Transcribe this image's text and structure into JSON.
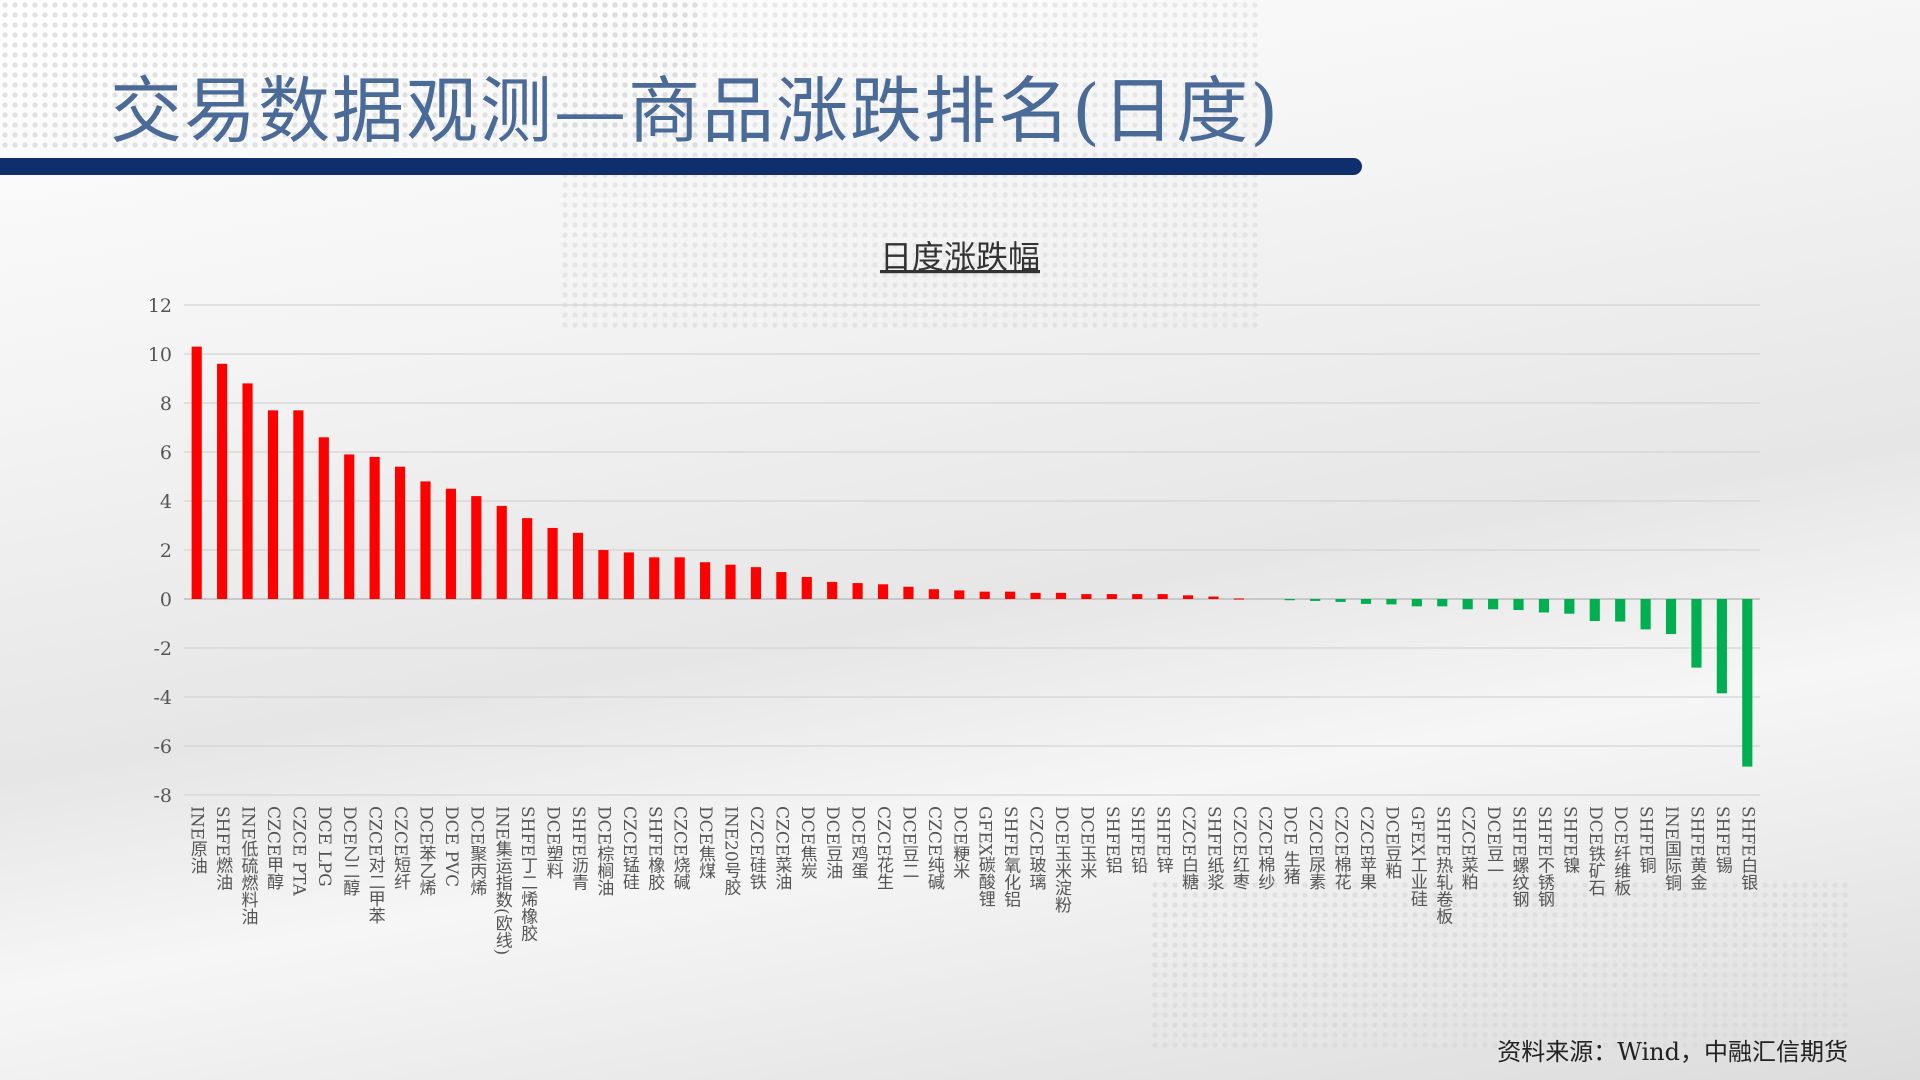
{
  "header": {
    "title": "交易数据观测—商品涨跌排名(日度)"
  },
  "footer": {
    "source": "资料来源：Wind，中融汇信期货"
  },
  "colors": {
    "up": "#ff0000",
    "down": "#00b050",
    "title": "#4a6a98",
    "title_bar": "#0e2e6e"
  },
  "chart_data": {
    "type": "bar",
    "title": "日度涨跌幅",
    "xlabel": "",
    "ylabel": "",
    "ylim": [
      -8,
      12
    ],
    "yticks": [
      12,
      10,
      8,
      6,
      4,
      2,
      0,
      -2,
      -4,
      -6,
      -8
    ],
    "grid": true,
    "legend": "none",
    "categories": [
      "INE原油",
      "SHFE燃油",
      "INE低硫燃料油",
      "CZCE甲醇",
      "CZCE PTA",
      "DCE LPG",
      "DCE乙二醇",
      "CZCE对二甲苯",
      "CZCE短纤",
      "DCE苯乙烯",
      "DCE PVC",
      "DCE聚丙烯",
      "INE集运指数(欧线)",
      "SHFE丁二烯橡胶",
      "DCE塑料",
      "SHFE沥青",
      "DCE棕榈油",
      "CZCE锰硅",
      "SHFE橡胶",
      "CZCE烧碱",
      "DCE焦煤",
      "INE20号胶",
      "CZCE硅铁",
      "CZCE菜油",
      "DCE焦炭",
      "DCE豆油",
      "DCE鸡蛋",
      "CZCE花生",
      "DCE豆二",
      "CZCE纯碱",
      "DCE粳米",
      "GFEX碳酸锂",
      "SHFE氧化铝",
      "CZCE玻璃",
      "DCE玉米淀粉",
      "DCE玉米",
      "SHFE铝",
      "SHFE铅",
      "SHFE锌",
      "CZCE白糖",
      "SHFE纸浆",
      "CZCE红枣",
      "CZCE棉纱",
      "DCE 生猪",
      "CZCE尿素",
      "CZCE棉花",
      "CZCE苹果",
      "DCE豆粕",
      "GFEX工业硅",
      "SHFE热轧卷板",
      "CZCE菜粕",
      "DCE豆一",
      "SHFE螺纹钢",
      "SHFE不锈钢",
      "SHFE镍",
      "DCE铁矿石",
      "DCE纤维板",
      "SHFE铜",
      "INE国际铜",
      "SHFE黄金",
      "SHFE锡",
      "SHFE白银"
    ],
    "values": [
      10.3,
      9.6,
      8.8,
      7.7,
      7.7,
      6.6,
      5.9,
      5.8,
      5.4,
      4.8,
      4.5,
      4.2,
      3.8,
      3.3,
      2.9,
      2.7,
      2.0,
      1.9,
      1.7,
      1.7,
      1.5,
      1.4,
      1.3,
      1.1,
      0.9,
      0.7,
      0.65,
      0.6,
      0.5,
      0.4,
      0.35,
      0.3,
      0.3,
      0.25,
      0.25,
      0.2,
      0.2,
      0.2,
      0.2,
      0.15,
      0.1,
      0.02,
      0.0,
      -0.05,
      -0.08,
      -0.12,
      -0.2,
      -0.22,
      -0.3,
      -0.3,
      -0.42,
      -0.42,
      -0.45,
      -0.55,
      -0.6,
      -0.9,
      -0.92,
      -1.24,
      -1.43,
      -2.8,
      -3.85,
      -6.84
    ]
  }
}
